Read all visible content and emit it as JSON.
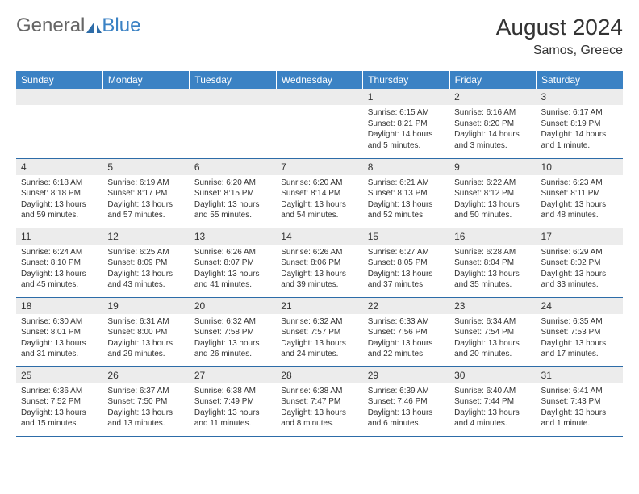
{
  "logo": {
    "general": "General",
    "blue": "Blue"
  },
  "title": "August 2024",
  "location": "Samos, Greece",
  "colors": {
    "header_bg": "#3b82c4",
    "border": "#2d6ca8",
    "daynum_bg": "#ececec"
  },
  "weekdays": [
    "Sunday",
    "Monday",
    "Tuesday",
    "Wednesday",
    "Thursday",
    "Friday",
    "Saturday"
  ],
  "weeks": [
    [
      null,
      null,
      null,
      null,
      {
        "n": "1",
        "sr": "6:15 AM",
        "ss": "8:21 PM",
        "dl": "14 hours and 5 minutes."
      },
      {
        "n": "2",
        "sr": "6:16 AM",
        "ss": "8:20 PM",
        "dl": "14 hours and 3 minutes."
      },
      {
        "n": "3",
        "sr": "6:17 AM",
        "ss": "8:19 PM",
        "dl": "14 hours and 1 minute."
      }
    ],
    [
      {
        "n": "4",
        "sr": "6:18 AM",
        "ss": "8:18 PM",
        "dl": "13 hours and 59 minutes."
      },
      {
        "n": "5",
        "sr": "6:19 AM",
        "ss": "8:17 PM",
        "dl": "13 hours and 57 minutes."
      },
      {
        "n": "6",
        "sr": "6:20 AM",
        "ss": "8:15 PM",
        "dl": "13 hours and 55 minutes."
      },
      {
        "n": "7",
        "sr": "6:20 AM",
        "ss": "8:14 PM",
        "dl": "13 hours and 54 minutes."
      },
      {
        "n": "8",
        "sr": "6:21 AM",
        "ss": "8:13 PM",
        "dl": "13 hours and 52 minutes."
      },
      {
        "n": "9",
        "sr": "6:22 AM",
        "ss": "8:12 PM",
        "dl": "13 hours and 50 minutes."
      },
      {
        "n": "10",
        "sr": "6:23 AM",
        "ss": "8:11 PM",
        "dl": "13 hours and 48 minutes."
      }
    ],
    [
      {
        "n": "11",
        "sr": "6:24 AM",
        "ss": "8:10 PM",
        "dl": "13 hours and 45 minutes."
      },
      {
        "n": "12",
        "sr": "6:25 AM",
        "ss": "8:09 PM",
        "dl": "13 hours and 43 minutes."
      },
      {
        "n": "13",
        "sr": "6:26 AM",
        "ss": "8:07 PM",
        "dl": "13 hours and 41 minutes."
      },
      {
        "n": "14",
        "sr": "6:26 AM",
        "ss": "8:06 PM",
        "dl": "13 hours and 39 minutes."
      },
      {
        "n": "15",
        "sr": "6:27 AM",
        "ss": "8:05 PM",
        "dl": "13 hours and 37 minutes."
      },
      {
        "n": "16",
        "sr": "6:28 AM",
        "ss": "8:04 PM",
        "dl": "13 hours and 35 minutes."
      },
      {
        "n": "17",
        "sr": "6:29 AM",
        "ss": "8:02 PM",
        "dl": "13 hours and 33 minutes."
      }
    ],
    [
      {
        "n": "18",
        "sr": "6:30 AM",
        "ss": "8:01 PM",
        "dl": "13 hours and 31 minutes."
      },
      {
        "n": "19",
        "sr": "6:31 AM",
        "ss": "8:00 PM",
        "dl": "13 hours and 29 minutes."
      },
      {
        "n": "20",
        "sr": "6:32 AM",
        "ss": "7:58 PM",
        "dl": "13 hours and 26 minutes."
      },
      {
        "n": "21",
        "sr": "6:32 AM",
        "ss": "7:57 PM",
        "dl": "13 hours and 24 minutes."
      },
      {
        "n": "22",
        "sr": "6:33 AM",
        "ss": "7:56 PM",
        "dl": "13 hours and 22 minutes."
      },
      {
        "n": "23",
        "sr": "6:34 AM",
        "ss": "7:54 PM",
        "dl": "13 hours and 20 minutes."
      },
      {
        "n": "24",
        "sr": "6:35 AM",
        "ss": "7:53 PM",
        "dl": "13 hours and 17 minutes."
      }
    ],
    [
      {
        "n": "25",
        "sr": "6:36 AM",
        "ss": "7:52 PM",
        "dl": "13 hours and 15 minutes."
      },
      {
        "n": "26",
        "sr": "6:37 AM",
        "ss": "7:50 PM",
        "dl": "13 hours and 13 minutes."
      },
      {
        "n": "27",
        "sr": "6:38 AM",
        "ss": "7:49 PM",
        "dl": "13 hours and 11 minutes."
      },
      {
        "n": "28",
        "sr": "6:38 AM",
        "ss": "7:47 PM",
        "dl": "13 hours and 8 minutes."
      },
      {
        "n": "29",
        "sr": "6:39 AM",
        "ss": "7:46 PM",
        "dl": "13 hours and 6 minutes."
      },
      {
        "n": "30",
        "sr": "6:40 AM",
        "ss": "7:44 PM",
        "dl": "13 hours and 4 minutes."
      },
      {
        "n": "31",
        "sr": "6:41 AM",
        "ss": "7:43 PM",
        "dl": "13 hours and 1 minute."
      }
    ]
  ],
  "labels": {
    "sunrise": "Sunrise:",
    "sunset": "Sunset:",
    "daylight": "Daylight:"
  }
}
